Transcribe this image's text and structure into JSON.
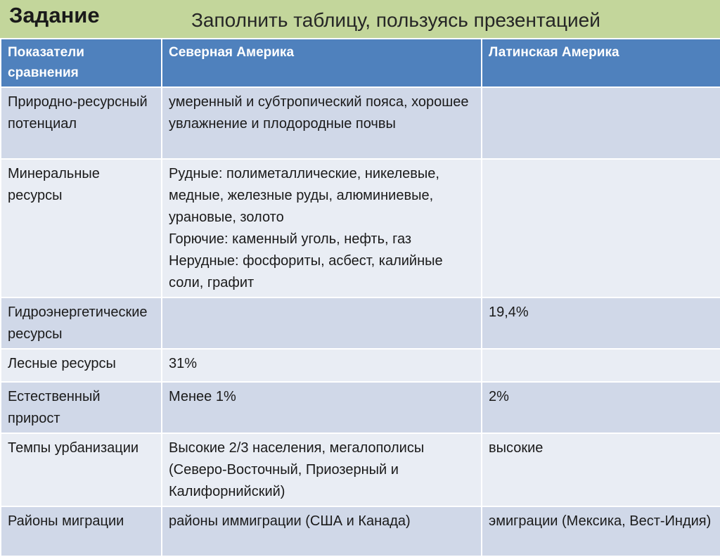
{
  "header": {
    "title": "Задание",
    "subtitle": "Заполнить таблицу, пользуясь презентацией"
  },
  "table": {
    "columns": [
      "Показатели сравнения",
      "Северная Америка",
      "Латинская Америка"
    ],
    "rows": [
      {
        "label": "Природно-ресурсный потенциал",
        "north": "умеренный и субтропический пояса, хорошее увлажнение и плодородные почвы",
        "latin": ""
      },
      {
        "label": "Минеральные ресурсы",
        "north": "Рудные: полиметаллические, никелевые, медные, железные руды, алюминиевые, урановые, золото\nГорючие: каменный уголь, нефть, газ\nНерудные: фосфориты, асбест, калийные соли, графит",
        "latin": ""
      },
      {
        "label": "Гидроэнергетические ресурсы",
        "north": "",
        "latin": "19,4%"
      },
      {
        "label": "Лесные ресурсы",
        "north": "31%",
        "latin": ""
      },
      {
        "label": "Естественный прирост",
        "north": "Менее 1%",
        "latin": "2%"
      },
      {
        "label": "Темпы урбанизации",
        "north": "Высокие 2/3 населения, мегалополисы (Северо-Восточный, Приозерный и Калифорнийский)",
        "latin": "высокие"
      },
      {
        "label": "Районы миграции",
        "north": "районы иммиграции (США и Канада)",
        "latin": "эмиграции (Мексика, Вест-Индия)"
      }
    ]
  },
  "colors": {
    "title_bar": "#c3d69b",
    "header_row": "#4f81bd",
    "row_dark": "#d0d8e8",
    "row_light": "#e9edf4"
  }
}
